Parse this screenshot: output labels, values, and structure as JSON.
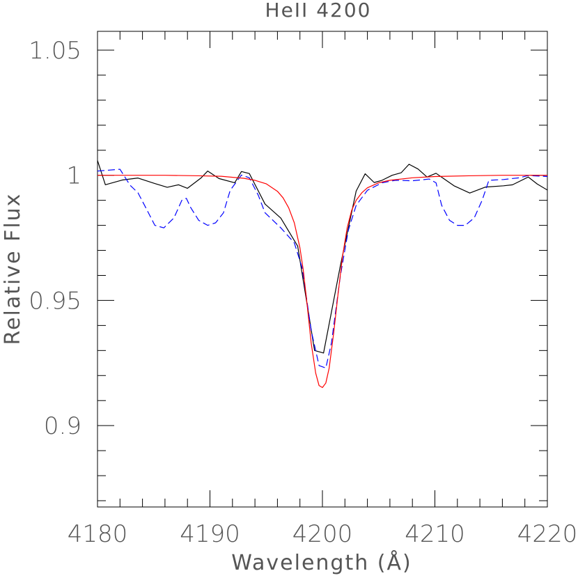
{
  "chart_data": {
    "type": "line",
    "title": "HeII 4200",
    "xlabel": "Wavelength (Å)",
    "ylabel": "Relative Flux",
    "xlim": [
      4180,
      4220
    ],
    "ylim": [
      0.8675,
      1.0575
    ],
    "x_ticks": [
      {
        "value": 4180,
        "label": "4180"
      },
      {
        "value": 4190,
        "label": "4190"
      },
      {
        "value": 4200,
        "label": "4200"
      },
      {
        "value": 4210,
        "label": "4210"
      },
      {
        "value": 4220,
        "label": "4220"
      }
    ],
    "y_ticks": [
      {
        "value": 0.9,
        "label": "0.9"
      },
      {
        "value": 0.95,
        "label": "0.95"
      },
      {
        "value": 1.0,
        "label": "1"
      },
      {
        "value": 1.05,
        "label": "1.05"
      }
    ],
    "x_minor_step": 2,
    "y_minor_step": 0.01,
    "grid": false,
    "legend": "none",
    "series": [
      {
        "color": "#000000",
        "style": "solid",
        "points": [
          [
            4180.0,
            1.0059
          ],
          [
            4180.7,
            0.9962
          ],
          [
            4182.2,
            0.9981
          ],
          [
            4183.6,
            0.9989
          ],
          [
            4185.1,
            0.9967
          ],
          [
            4186.2,
            0.9952
          ],
          [
            4187.2,
            0.9962
          ],
          [
            4188.0,
            0.9948
          ],
          [
            4189.2,
            0.9989
          ],
          [
            4189.8,
            1.0017
          ],
          [
            4190.8,
            0.9987
          ],
          [
            4192.2,
            0.997
          ],
          [
            4192.8,
            1.0015
          ],
          [
            4193.5,
            1.0007
          ],
          [
            4194.9,
            0.9885
          ],
          [
            4196.3,
            0.9829
          ],
          [
            4197.8,
            0.9717
          ],
          [
            4199.3,
            0.93
          ],
          [
            4200.1,
            0.929
          ],
          [
            4201.6,
            0.964
          ],
          [
            4203.0,
            0.9937
          ],
          [
            4203.8,
            1.0006
          ],
          [
            4204.6,
            0.9971
          ],
          [
            4205.3,
            0.998
          ],
          [
            4206.2,
            1.0
          ],
          [
            4207.0,
            1.001
          ],
          [
            4207.7,
            1.0044
          ],
          [
            4208.5,
            1.0025
          ],
          [
            4209.3,
            0.9993
          ],
          [
            4210.1,
            1.0008
          ],
          [
            4211.7,
            0.9958
          ],
          [
            4213.1,
            0.9929
          ],
          [
            4214.5,
            0.9953
          ],
          [
            4216.1,
            0.9958
          ],
          [
            4216.9,
            0.9962
          ],
          [
            4218.3,
            0.9993
          ],
          [
            4219.1,
            0.9965
          ],
          [
            4220.0,
            0.9941
          ]
        ]
      },
      {
        "color": "#0000ff",
        "style": "dashed",
        "points": [
          [
            4180.0,
            1.0017
          ],
          [
            4182.0,
            1.0024
          ],
          [
            4182.9,
            0.996
          ],
          [
            4183.6,
            0.993
          ],
          [
            4184.3,
            0.987
          ],
          [
            4185.1,
            0.98
          ],
          [
            4185.9,
            0.979
          ],
          [
            4186.8,
            0.983
          ],
          [
            4187.5,
            0.99
          ],
          [
            4187.9,
            0.9908
          ],
          [
            4188.3,
            0.987
          ],
          [
            4189.0,
            0.982
          ],
          [
            4189.8,
            0.98
          ],
          [
            4190.5,
            0.981
          ],
          [
            4191.2,
            0.985
          ],
          [
            4191.8,
            0.994
          ],
          [
            4192.8,
            1.0001
          ],
          [
            4193.5,
            0.999
          ],
          [
            4194.3,
            0.992
          ],
          [
            4194.9,
            0.985
          ],
          [
            4196.3,
            0.979
          ],
          [
            4197.5,
            0.973
          ],
          [
            4198.2,
            0.963
          ],
          [
            4199.0,
            0.938
          ],
          [
            4199.7,
            0.924
          ],
          [
            4200.3,
            0.923
          ],
          [
            4200.8,
            0.933
          ],
          [
            4201.6,
            0.96
          ],
          [
            4202.3,
            0.978
          ],
          [
            4203.0,
            0.988
          ],
          [
            4204.0,
            0.994
          ],
          [
            4205.3,
            0.997
          ],
          [
            4206.5,
            0.998
          ],
          [
            4208.0,
            0.9978
          ],
          [
            4209.5,
            0.9985
          ],
          [
            4210.1,
            0.997
          ],
          [
            4210.6,
            0.988
          ],
          [
            4211.3,
            0.982
          ],
          [
            4212.0,
            0.98
          ],
          [
            4212.7,
            0.98
          ],
          [
            4213.5,
            0.983
          ],
          [
            4214.2,
            0.99
          ],
          [
            4214.8,
            0.998
          ],
          [
            4216.1,
            0.9983
          ],
          [
            4217.5,
            0.999
          ],
          [
            4218.3,
            0.9999
          ],
          [
            4220.0,
            0.9995
          ]
        ]
      },
      {
        "color": "#ff0000",
        "style": "solid",
        "points": [
          [
            4180.0,
            1.0
          ],
          [
            4183.0,
            1.0
          ],
          [
            4186.0,
            1.0
          ],
          [
            4189.0,
            0.9998
          ],
          [
            4191.0,
            0.9996
          ],
          [
            4193.0,
            0.9988
          ],
          [
            4194.0,
            0.998
          ],
          [
            4195.0,
            0.9966
          ],
          [
            4196.0,
            0.9936
          ],
          [
            4196.5,
            0.991
          ],
          [
            4197.0,
            0.987
          ],
          [
            4197.5,
            0.981
          ],
          [
            4198.0,
            0.971
          ],
          [
            4198.3,
            0.962
          ],
          [
            4198.6,
            0.95
          ],
          [
            4199.0,
            0.933
          ],
          [
            4199.4,
            0.921
          ],
          [
            4199.7,
            0.916
          ],
          [
            4200.0,
            0.9152
          ],
          [
            4200.3,
            0.917
          ],
          [
            4200.6,
            0.923
          ],
          [
            4201.0,
            0.937
          ],
          [
            4201.4,
            0.953
          ],
          [
            4201.8,
            0.968
          ],
          [
            4202.2,
            0.979
          ],
          [
            4202.6,
            0.986
          ],
          [
            4203.0,
            0.99
          ],
          [
            4203.5,
            0.993
          ],
          [
            4204.0,
            0.995
          ],
          [
            4205.0,
            0.997
          ],
          [
            4206.0,
            0.998
          ],
          [
            4208.0,
            0.999
          ],
          [
            4210.0,
            0.9995
          ],
          [
            4213.0,
            0.9998
          ],
          [
            4216.0,
            1.0
          ],
          [
            4220.0,
            1.0
          ]
        ]
      }
    ]
  }
}
